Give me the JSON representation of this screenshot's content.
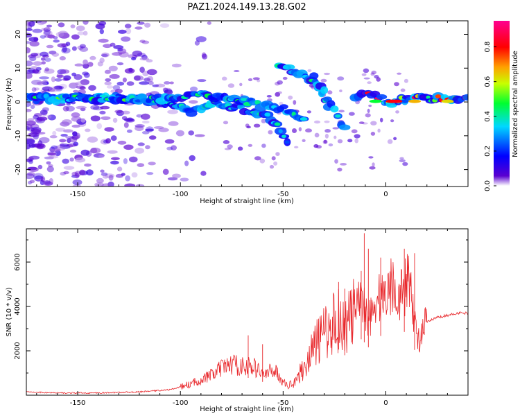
{
  "title": "PAZ1.2024.149.13.28.G02",
  "chart_data": [
    {
      "type": "heatmap",
      "xlabel": "Height of straight line (km)",
      "ylabel": "Frequency (Hz)",
      "xlim": [
        -175,
        40
      ],
      "ylim": [
        -25,
        24
      ],
      "x_ticks": [
        -150,
        -100,
        -50,
        0
      ],
      "y_ticks": [
        -20,
        -10,
        0,
        10,
        20
      ],
      "grid": false,
      "colorbar": {
        "label": "Normalized spectral amplitude",
        "range": [
          0.0,
          0.95
        ],
        "ticks": [
          0.0,
          0.2,
          0.4,
          0.6,
          0.8
        ],
        "colors": [
          "#ffffff",
          "#5a00d0",
          "#0000ff",
          "#00d8ff",
          "#00ff30",
          "#c8ff00",
          "#ffa000",
          "#ff0000",
          "#ff0090"
        ]
      },
      "ridges": [
        {
          "x": [
            -175,
            -150,
            -120,
            -100,
            -95,
            -85,
            -70,
            -55,
            -48
          ],
          "y": [
            1,
            1,
            1,
            -1,
            -3,
            0,
            -2,
            -5,
            -12
          ],
          "peak": 0.45
        },
        {
          "x": [
            -175,
            -140,
            -110,
            -90,
            -75,
            -60,
            -50,
            -40
          ],
          "y": [
            1,
            1,
            1,
            2,
            1,
            -1,
            -2,
            -5
          ],
          "peak": 0.5
        },
        {
          "x": [
            -52,
            -45,
            -38,
            -32,
            -28
          ],
          "y": [
            11,
            9,
            7,
            4,
            -2
          ],
          "peak": 0.45
        },
        {
          "x": [
            -35,
            -30,
            -25,
            -20
          ],
          "y": [
            7,
            3,
            -2,
            -8
          ],
          "peak": 0.4
        },
        {
          "x": [
            -15,
            -10,
            -5,
            0,
            5,
            10,
            20,
            40
          ],
          "y": [
            2,
            3,
            2,
            0,
            0,
            1,
            1,
            1
          ],
          "peak": 0.95
        }
      ]
    },
    {
      "type": "line",
      "xlabel": "Height of straight line (km)",
      "ylabel": "SNR (10 * v/v)",
      "xlim": [
        -175,
        40
      ],
      "ylim": [
        0,
        7500
      ],
      "x_ticks": [
        -150,
        -100,
        -50,
        0
      ],
      "y_ticks": [
        2000,
        4000,
        6000
      ],
      "grid": false,
      "series": [
        {
          "color": "#e8262a",
          "x": [
            -175,
            -160,
            -140,
            -120,
            -105,
            -95,
            -85,
            -80,
            -75,
            -70,
            -65,
            -60,
            -58,
            -55,
            -52,
            -50,
            -48,
            -45,
            -40,
            -35,
            -30,
            -28,
            -25,
            -22,
            -20,
            -18,
            -15,
            -12,
            -10,
            -8,
            -5,
            -2,
            0,
            3,
            5,
            8,
            10,
            12,
            15,
            18,
            20,
            25,
            30,
            35,
            40
          ],
          "y": [
            150,
            100,
            100,
            150,
            250,
            500,
            900,
            1200,
            1400,
            1300,
            1300,
            1000,
            900,
            1200,
            900,
            600,
            400,
            600,
            1200,
            2200,
            2800,
            3000,
            3300,
            3500,
            3000,
            3400,
            3800,
            4200,
            3900,
            3500,
            4200,
            4500,
            4600,
            5000,
            4800,
            4500,
            5000,
            5200,
            2500,
            2800,
            3300,
            3500,
            3600,
            3700,
            3700
          ],
          "spikes": [
            {
              "x": -10.5,
              "y": 7300
            },
            {
              "x": -8.5,
              "y": 6600
            },
            {
              "x": -12,
              "y": 5600
            },
            {
              "x": -2.5,
              "y": 6200
            },
            {
              "x": 9,
              "y": 6600
            },
            {
              "x": 14,
              "y": 6400
            },
            {
              "x": -23,
              "y": 5100
            },
            {
              "x": -20,
              "y": 4800
            },
            {
              "x": -67,
              "y": 2700
            },
            {
              "x": -60,
              "y": 2300
            }
          ]
        }
      ]
    }
  ]
}
